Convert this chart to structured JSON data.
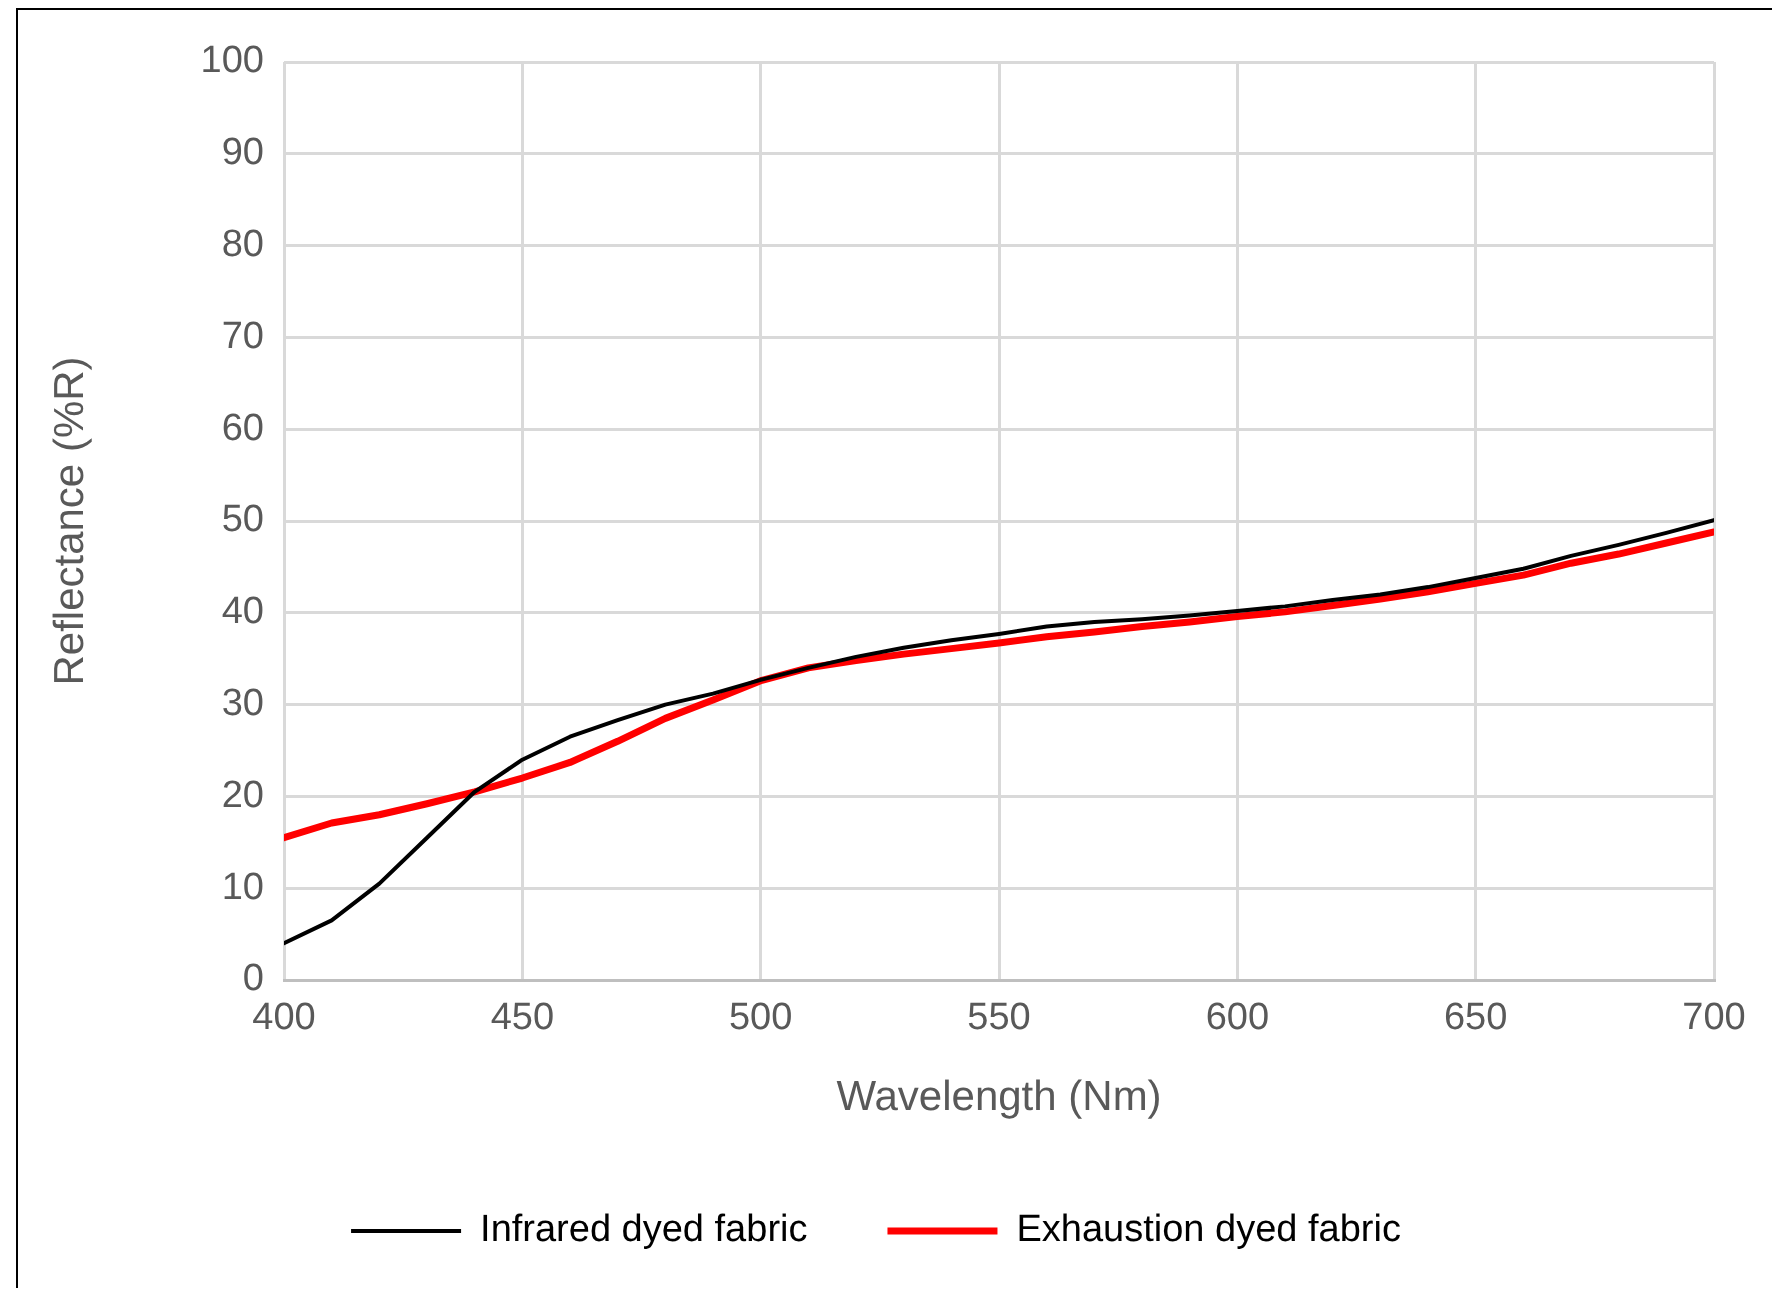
{
  "chart_data": {
    "type": "line",
    "xlabel": "Wavelength (Nm)",
    "ylabel": "Reflectance (%R)",
    "x": [
      400,
      410,
      420,
      430,
      440,
      450,
      460,
      470,
      480,
      490,
      500,
      510,
      520,
      530,
      540,
      550,
      560,
      570,
      580,
      590,
      600,
      610,
      620,
      630,
      640,
      650,
      660,
      670,
      680,
      690,
      700
    ],
    "series": [
      {
        "name": "Infrared dyed fabric",
        "color": "#000000",
        "values": [
          4,
          6.5,
          10.5,
          15.5,
          20.5,
          24,
          26.5,
          28.3,
          30,
          31.2,
          32.7,
          34,
          35.2,
          36.2,
          37,
          37.7,
          38.5,
          39,
          39.3,
          39.7,
          40.2,
          40.7,
          41.4,
          42,
          42.8,
          43.8,
          44.8,
          46.2,
          47.4,
          48.7,
          50.1
        ]
      },
      {
        "name": "Exhaustion dyed fabric",
        "color": "#ff0000",
        "values": [
          15.5,
          17.1,
          18,
          19.2,
          20.5,
          22,
          23.7,
          26,
          28.5,
          30.5,
          32.6,
          34,
          34.8,
          35.5,
          36.1,
          36.7,
          37.4,
          37.9,
          38.5,
          39,
          39.6,
          40.1,
          40.8,
          41.5,
          42.3,
          43.2,
          44.1,
          45.4,
          46.4,
          47.6,
          48.8
        ]
      }
    ],
    "xlim": [
      400,
      700
    ],
    "xticks": [
      400,
      450,
      500,
      550,
      600,
      650,
      700
    ],
    "ylim": [
      0,
      100
    ],
    "yticks": [
      0,
      10,
      20,
      30,
      40,
      50,
      60,
      70,
      80,
      90,
      100
    ],
    "grid": true,
    "legend": "bottom",
    "marker": "none",
    "line_style": "solid"
  }
}
